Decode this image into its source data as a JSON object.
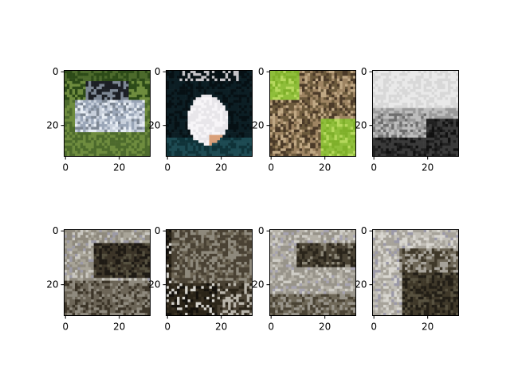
{
  "chart_data": {
    "type": "heatmap",
    "grid": false,
    "panels": [
      {
        "row": 0,
        "col": 0,
        "content": "car image",
        "palette": [
          "#4c6a2c",
          "#6e8c3e",
          "#9aa6b8",
          "#c8d0dc",
          "#1c1f25",
          "#2c4a18",
          "#7d8794",
          "#e7edf4"
        ],
        "xlim": [
          0,
          31
        ],
        "ylim": [
          31,
          0
        ],
        "xticks": [
          "0",
          "20"
        ],
        "yticks": [
          "0",
          "20"
        ]
      },
      {
        "row": 0,
        "col": 1,
        "content": "dog image",
        "palette": [
          "#0c1e24",
          "#0f3238",
          "#1d4a52",
          "#e8e6ea",
          "#f7f5f8",
          "#d9a07a",
          "#c4c2c6",
          "#061014"
        ],
        "xlim": [
          0,
          31
        ],
        "ylim": [
          31,
          0
        ],
        "xticks": [
          "0",
          "20"
        ],
        "yticks": [
          "0",
          "20"
        ]
      },
      {
        "row": 0,
        "col": 2,
        "content": "frog image",
        "palette": [
          "#8fbe3a",
          "#6c5a3c",
          "#9e8462",
          "#4b3a28",
          "#c0a884",
          "#7fb02a",
          "#5a6e32",
          "#b5d85c"
        ],
        "xlim": [
          0,
          31
        ],
        "ylim": [
          31,
          0
        ],
        "xticks": [
          "0",
          "20"
        ],
        "yticks": [
          "0",
          "20"
        ]
      },
      {
        "row": 0,
        "col": 3,
        "content": "ship image",
        "palette": [
          "#d8d8d8",
          "#bdbdbd",
          "#9a9a9a",
          "#3a3a3a",
          "#202020",
          "#e9e9e9",
          "#6e6e6e",
          "#111111"
        ],
        "xlim": [
          0,
          31
        ],
        "ylim": [
          31,
          0
        ],
        "xticks": [
          "0",
          "20"
        ],
        "yticks": [
          "0",
          "20"
        ]
      },
      {
        "row": 1,
        "col": 0,
        "content": "reconstruction",
        "palette": [
          "#8f8a7e",
          "#a8a498",
          "#3c3528",
          "#1e1a14",
          "#6b6456",
          "#c9c7c0",
          "#55503f",
          "#9c9aa6"
        ],
        "xlim": [
          0,
          31
        ],
        "ylim": [
          31,
          0
        ],
        "xticks": [
          "0",
          "20"
        ],
        "yticks": [
          "0",
          "20"
        ]
      },
      {
        "row": 1,
        "col": 1,
        "content": "reconstruction",
        "palette": [
          "#2a2418",
          "#14110c",
          "#4a4234",
          "#8e897c",
          "#b9b5ab",
          "#d3d1cb",
          "#6b6352",
          "#3a3224"
        ],
        "xlim": [
          0,
          31
        ],
        "ylim": [
          31,
          0
        ],
        "xticks": [
          "0",
          "20"
        ],
        "yticks": [
          "0",
          "20"
        ]
      },
      {
        "row": 1,
        "col": 2,
        "content": "reconstruction",
        "palette": [
          "#98948a",
          "#b4b0a6",
          "#4a4334",
          "#2a251b",
          "#6f6858",
          "#cfcdc6",
          "#8a8576",
          "#a6a3b0"
        ],
        "xlim": [
          0,
          31
        ],
        "ylim": [
          31,
          0
        ],
        "xticks": [
          "0",
          "20"
        ],
        "yticks": [
          "0",
          "20"
        ]
      },
      {
        "row": 1,
        "col": 3,
        "content": "reconstruction",
        "palette": [
          "#a7a39a",
          "#c2bfb7",
          "#3f3829",
          "#221e16",
          "#6d6656",
          "#d8d6d0",
          "#57513f",
          "#9b99a8"
        ],
        "xlim": [
          0,
          31
        ],
        "ylim": [
          31,
          0
        ],
        "xticks": [
          "0",
          "20"
        ],
        "yticks": [
          "0",
          "20"
        ]
      }
    ]
  }
}
